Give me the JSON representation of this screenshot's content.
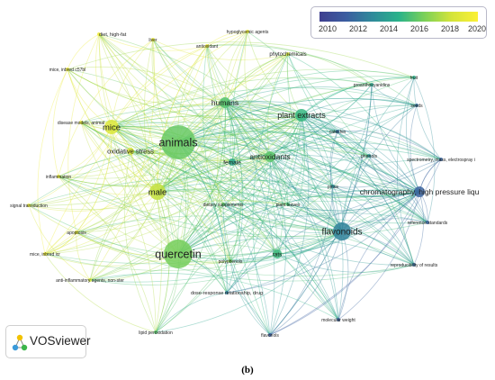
{
  "legend": {
    "ticks": [
      "2010",
      "2012",
      "2014",
      "2016",
      "2018",
      "2020"
    ],
    "color_scale": [
      "#3f3f8f",
      "#3b5da0",
      "#2f8a9a",
      "#29b28a",
      "#7dd157",
      "#d4e43a",
      "#fbf035"
    ]
  },
  "brand": {
    "name": "VOSviewer",
    "logo_icon": "vosviewer-logo-icon"
  },
  "caption": "(b)",
  "network": {
    "nodes": [
      {
        "id": "animals",
        "label": "animals",
        "year": 2016.6
      },
      {
        "id": "quercetin",
        "label": "quercetin",
        "year": 2016.9
      },
      {
        "id": "flavonoids",
        "label": "flavonoids",
        "year": 2013.2
      },
      {
        "id": "plant_extracts",
        "label": "plant extracts",
        "year": 2015.6
      },
      {
        "id": "chromatography",
        "label": "chromatography, high pressure liqu",
        "year": 2012.0
      },
      {
        "id": "mice",
        "label": "mice",
        "year": 2019.1
      },
      {
        "id": "male",
        "label": "male",
        "year": 2018.5
      },
      {
        "id": "humans",
        "label": "humans",
        "year": 2016.2
      },
      {
        "id": "antioxidants",
        "label": "antioxidants",
        "year": 2016.4
      },
      {
        "id": "female",
        "label": "female",
        "year": 2014.8
      },
      {
        "id": "oxidative_stress",
        "label": "oxidative stress",
        "year": 2019.0
      },
      {
        "id": "rats",
        "label": "rats",
        "year": 2015.7
      },
      {
        "id": "diet_high_fat",
        "label": "diet, high-fat",
        "year": 2020.0
      },
      {
        "id": "liver",
        "label": "liver",
        "year": 2019.6
      },
      {
        "id": "hypoglycemic",
        "label": "hypoglycemic agents",
        "year": 2020.1
      },
      {
        "id": "antioxidant",
        "label": "antioxidant",
        "year": 2019.9
      },
      {
        "id": "phytochemicals",
        "label": "phytochemicals",
        "year": 2019.0
      },
      {
        "id": "mice_c57bl",
        "label": "mice, inbred c57bl",
        "year": 2020.0
      },
      {
        "id": "disease_models",
        "label": "disease models, animal",
        "year": 2019.9
      },
      {
        "id": "inflammation",
        "label": "inflammation",
        "year": 2019.7
      },
      {
        "id": "signal_transduction",
        "label": "signal transduction",
        "year": 2019.8
      },
      {
        "id": "apoptosis",
        "label": "apoptosis",
        "year": 2019.5
      },
      {
        "id": "mice_icr",
        "label": "mice, inbred icr",
        "year": 2020.0
      },
      {
        "id": "anti_inflammatory",
        "label": "anti-inflammatory agents, non-ster",
        "year": 2018.8
      },
      {
        "id": "lipid_peroxidation",
        "label": "lipid peroxidation",
        "year": 2016.3
      },
      {
        "id": "dose_response",
        "label": "dose-response relationship, drug",
        "year": 2013.0
      },
      {
        "id": "flavonols",
        "label": "flavonols",
        "year": 2011.6
      },
      {
        "id": "molecular_weight",
        "label": "molecular weight",
        "year": 2012.0
      },
      {
        "id": "reproducibility",
        "label": "reproducibility of results",
        "year": 2012.3
      },
      {
        "id": "reference_standards",
        "label": "reference standards",
        "year": 2012.0
      },
      {
        "id": "spectrometry",
        "label": "spectrometry, mass, electrospray i",
        "year": 2012.1
      },
      {
        "id": "seeds",
        "label": "seeds",
        "year": 2012.6
      },
      {
        "id": "fruit",
        "label": "fruit",
        "year": 2015.3
      },
      {
        "id": "proanthocyanidins",
        "label": "proanthocyanidins",
        "year": 2014.8
      },
      {
        "id": "catechin",
        "label": "catechin",
        "year": 2012.4
      },
      {
        "id": "phenols",
        "label": "phenols",
        "year": 2014.2
      },
      {
        "id": "plant_leaves",
        "label": "plant leaves",
        "year": 2015.9
      },
      {
        "id": "dietary_supplements",
        "label": "dietary supplements",
        "year": 2016.4
      },
      {
        "id": "polyphenols",
        "label": "polyphenols",
        "year": 2016.9
      },
      {
        "id": "pinus",
        "label": "pinus",
        "year": 2013.6
      }
    ]
  }
}
